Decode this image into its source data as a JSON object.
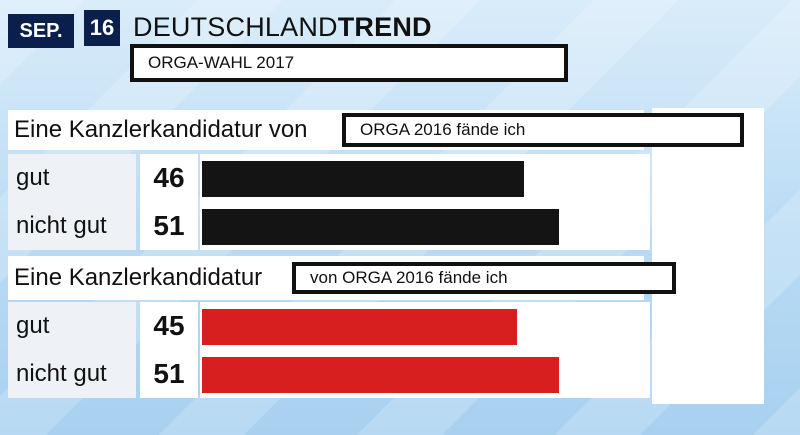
{
  "header": {
    "month": "SEP.",
    "day": "16",
    "brand_regular": "DEUTSCHLAND",
    "brand_bold": "TREND",
    "subtitle": "ORGA-WAHL 2017"
  },
  "chart_data": {
    "type": "bar",
    "orientation": "horizontal",
    "max_value": 100,
    "groups": [
      {
        "title": "Eine Kanzlerkandidatur von",
        "box_text": "ORGA 2016 fände ich",
        "color": "#141414",
        "rows": [
          {
            "label": "gut",
            "value": 46
          },
          {
            "label": "nicht gut",
            "value": 51
          }
        ]
      },
      {
        "title": "Eine Kanzlerkandidatur",
        "box_text": "von ORGA 2016 fände ich",
        "color": "#d71f1f",
        "rows": [
          {
            "label": "gut",
            "value": 45
          },
          {
            "label": "nicht gut",
            "value": 51
          }
        ]
      }
    ]
  }
}
